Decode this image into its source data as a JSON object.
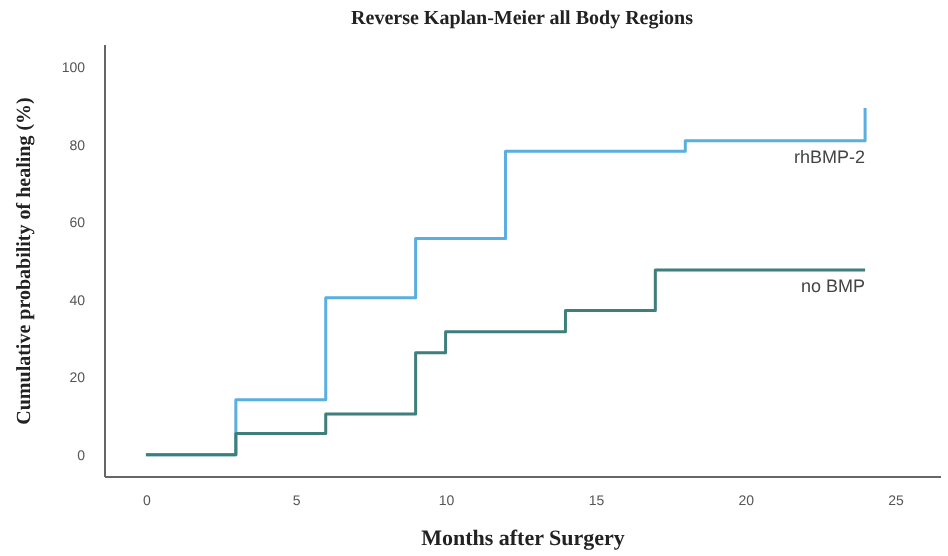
{
  "chart_data": {
    "type": "step",
    "title": "Reverse Kaplan-Meier all Body Regions",
    "xlabel": "Months after Surgery",
    "ylabel": "Cumulative probability of healing (%)",
    "series": [
      {
        "name": "rhBMP-2",
        "color": "#5aaee0",
        "x": [
          0,
          3,
          6,
          9,
          12,
          18,
          24,
          24
        ],
        "values": [
          0,
          14.2,
          40.5,
          55.8,
          78.3,
          81,
          81,
          89.5
        ]
      },
      {
        "name": "no BMP",
        "color": "#3e7f7c",
        "x": [
          0,
          3,
          6,
          9,
          10,
          14,
          17,
          24
        ],
        "values": [
          0,
          5.5,
          10.5,
          26.3,
          31.7,
          37.2,
          47.7,
          47.7
        ]
      }
    ],
    "xlim": [
      -1.4,
      26.5
    ],
    "ylim": [
      -5.5,
      106
    ],
    "xticks": [
      0,
      5,
      10,
      15,
      20,
      25
    ],
    "yticks": [
      0,
      20,
      40,
      60,
      80,
      100
    ],
    "grid": false,
    "legend": false
  }
}
